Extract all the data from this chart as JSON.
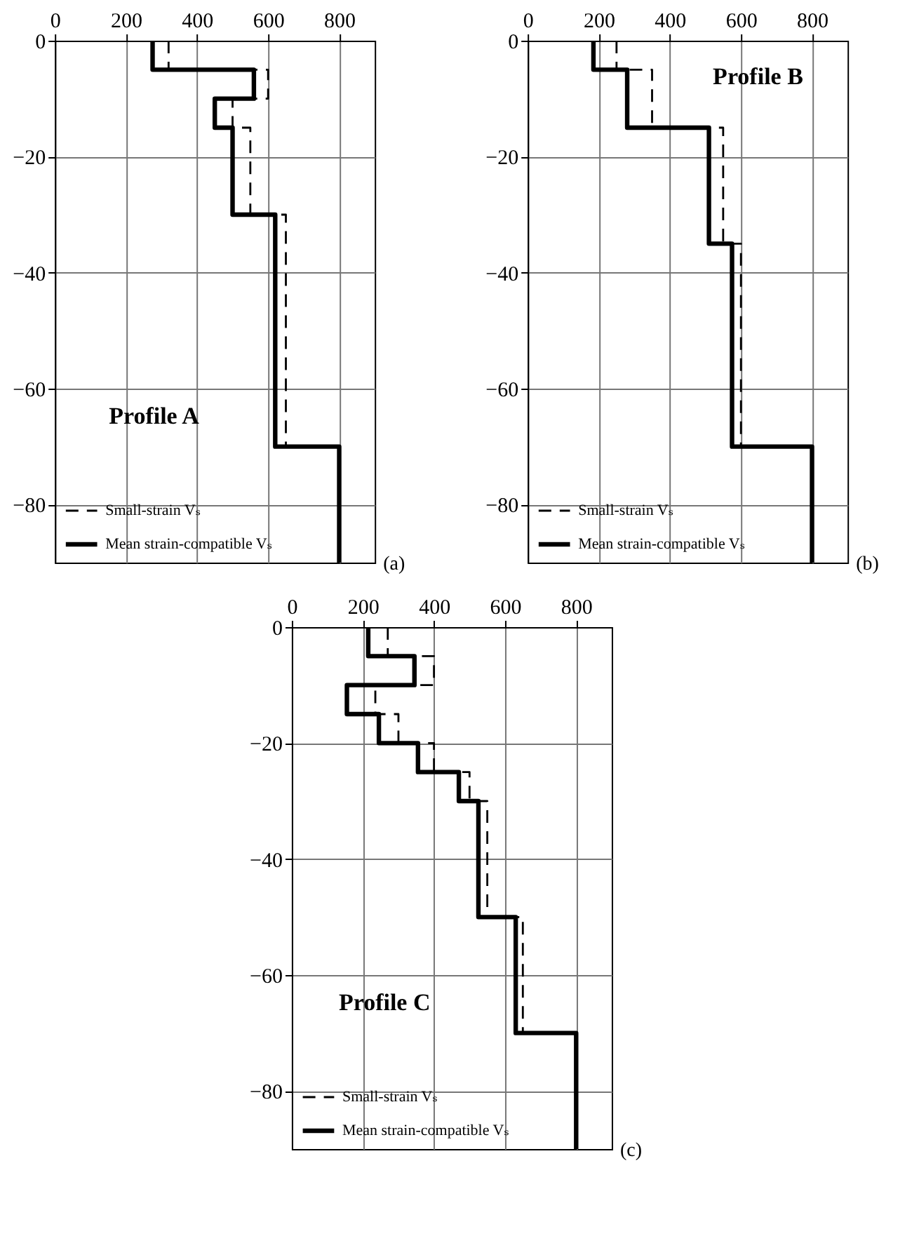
{
  "chart_data": [
    {
      "type": "line",
      "annotations": [
        "Profile A",
        "(a)"
      ],
      "xlim": [
        0,
        900
      ],
      "xticks": [
        0,
        200,
        400,
        600,
        800
      ],
      "ylim": [
        -90,
        0
      ],
      "yticks": [
        0,
        -20,
        -40,
        -60,
        -80
      ],
      "grid": true,
      "legend": "bottom left",
      "series": [
        {
          "name": "Small-strain Vₛ",
          "color": "#000000",
          "line_style": "dashed",
          "x": [
            320,
            320,
            600,
            600,
            500,
            500,
            550,
            550,
            650,
            650,
            800,
            800
          ],
          "values": [
            0,
            -5,
            -5,
            -10,
            -10,
            -15,
            -15,
            -30,
            -30,
            -70,
            -70,
            -90
          ]
        },
        {
          "name": "Mean strain-compatible Vₛ",
          "color": "#000000",
          "line_style": "solid",
          "x": [
            275,
            275,
            560,
            560,
            450,
            450,
            500,
            500,
            620,
            620,
            800,
            800
          ],
          "values": [
            0,
            -5,
            -5,
            -10,
            -10,
            -15,
            -15,
            -30,
            -30,
            -70,
            -70,
            -90
          ]
        }
      ]
    },
    {
      "type": "line",
      "annotations": [
        "Profile B",
        "(b)"
      ],
      "xlim": [
        0,
        900
      ],
      "xticks": [
        0,
        200,
        400,
        600,
        800
      ],
      "ylim": [
        -90,
        0
      ],
      "yticks": [
        0,
        -20,
        -40,
        -60,
        -80
      ],
      "grid": true,
      "legend": "bottom left",
      "series": [
        {
          "name": "Small-strain Vₛ",
          "color": "#000000",
          "line_style": "dashed",
          "x": [
            250,
            250,
            350,
            350,
            550,
            550,
            600,
            600,
            800,
            800
          ],
          "values": [
            0,
            -5,
            -5,
            -15,
            -15,
            -35,
            -35,
            -70,
            -70,
            -90
          ]
        },
        {
          "name": "Mean strain-compatible Vₛ",
          "color": "#000000",
          "line_style": "solid",
          "x": [
            185,
            185,
            280,
            280,
            510,
            510,
            575,
            575,
            800,
            800
          ],
          "values": [
            0,
            -5,
            -5,
            -15,
            -15,
            -35,
            -35,
            -70,
            -70,
            -90
          ]
        }
      ]
    },
    {
      "type": "line",
      "annotations": [
        "Profile C",
        "(c)"
      ],
      "xlim": [
        0,
        900
      ],
      "xticks": [
        0,
        200,
        400,
        600,
        800
      ],
      "ylim": [
        -90,
        0
      ],
      "yticks": [
        0,
        -20,
        -40,
        -60,
        -80
      ],
      "grid": true,
      "legend": "bottom left",
      "series": [
        {
          "name": "Small-strain Vₛ",
          "color": "#000000",
          "line_style": "dashed",
          "x": [
            270,
            270,
            400,
            400,
            235,
            235,
            300,
            300,
            400,
            400,
            500,
            500,
            550,
            550,
            650,
            650,
            800,
            800
          ],
          "values": [
            0,
            -5,
            -5,
            -10,
            -10,
            -15,
            -15,
            -20,
            -20,
            -25,
            -25,
            -30,
            -30,
            -50,
            -50,
            -70,
            -70,
            -90
          ]
        },
        {
          "name": "Mean strain-compatible Vₛ",
          "color": "#000000",
          "line_style": "solid",
          "x": [
            215,
            215,
            345,
            345,
            155,
            155,
            245,
            245,
            355,
            355,
            470,
            470,
            525,
            525,
            630,
            630,
            800,
            800
          ],
          "values": [
            0,
            -5,
            -5,
            -10,
            -10,
            -15,
            -15,
            -20,
            -20,
            -25,
            -25,
            -30,
            -30,
            -50,
            -50,
            -70,
            -70,
            -90
          ]
        }
      ]
    }
  ]
}
